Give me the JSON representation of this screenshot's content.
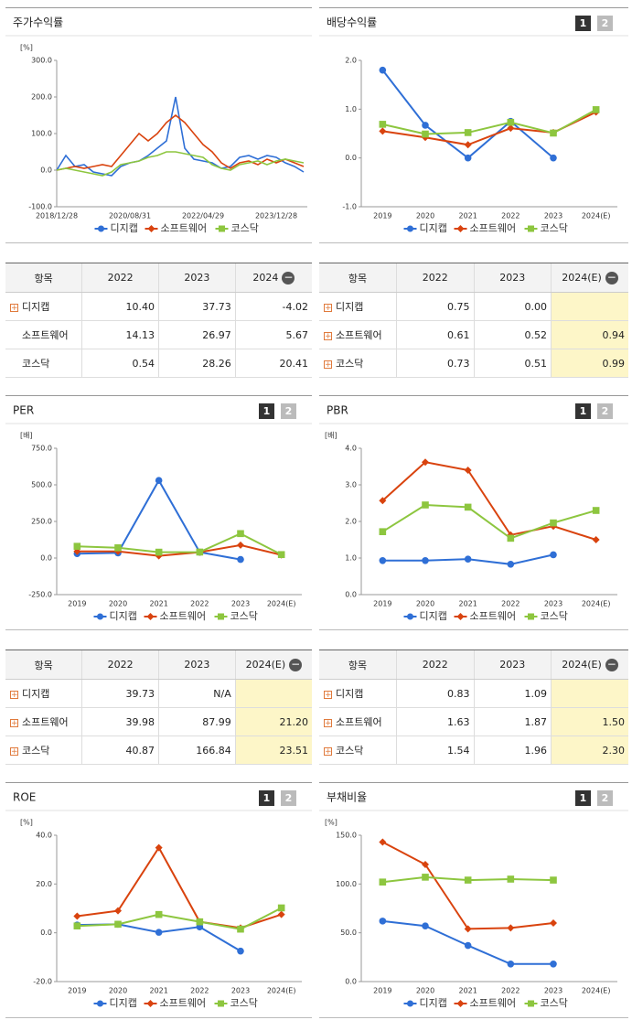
{
  "chart_data": [
    {
      "type": "line",
      "title": "주가수익률",
      "unit": "[%]",
      "markers": false,
      "categories": [
        "2018/12/28",
        null,
        null,
        null,
        null,
        null,
        null,
        null,
        "2020/08/31",
        null,
        null,
        null,
        null,
        null,
        null,
        null,
        "2022/04/29",
        null,
        null,
        null,
        null,
        null,
        null,
        null,
        "2023/12/28",
        null,
        null,
        null
      ],
      "series": [
        {
          "name": "디지캡",
          "color": "#2f6fd6",
          "values": [
            0,
            40,
            10,
            15,
            -5,
            -10,
            -15,
            10,
            20,
            25,
            40,
            60,
            80,
            200,
            60,
            30,
            25,
            20,
            5,
            10,
            35,
            40,
            30,
            40,
            35,
            20,
            10,
            -5
          ]
        },
        {
          "name": "소프트웨어",
          "color": "#d9430e",
          "values": [
            0,
            5,
            10,
            5,
            10,
            15,
            10,
            40,
            70,
            100,
            80,
            100,
            130,
            150,
            130,
            100,
            70,
            50,
            20,
            5,
            20,
            25,
            15,
            30,
            20,
            30,
            20,
            10
          ]
        },
        {
          "name": "코스닥",
          "color": "#8dc63f",
          "values": [
            0,
            5,
            0,
            -5,
            -10,
            -15,
            -5,
            15,
            20,
            25,
            35,
            40,
            50,
            50,
            45,
            40,
            35,
            15,
            5,
            0,
            15,
            20,
            25,
            15,
            25,
            30,
            25,
            20
          ]
        }
      ],
      "ylim": [
        -100,
        300
      ],
      "yticks": [
        {
          "value": 300,
          "label": "300.0"
        },
        {
          "value": 200,
          "label": "200.0"
        },
        {
          "value": 100,
          "label": "100.0"
        },
        {
          "value": 0,
          "label": "0.0"
        },
        {
          "value": -100,
          "label": "-100.0"
        }
      ],
      "grid": false,
      "legend": "bottom"
    },
    {
      "type": "line",
      "title": "배당수익률",
      "unit": null,
      "markers": true,
      "pager": [
        "1",
        "2"
      ],
      "categories": [
        "2019",
        "2020",
        "2021",
        "2022",
        "2023",
        "2024(E)"
      ],
      "series": [
        {
          "name": "디지캡",
          "color": "#2f6fd6",
          "values": [
            1.8,
            0.67,
            0.0,
            0.75,
            0.0,
            null
          ]
        },
        {
          "name": "소프트웨어",
          "color": "#d9430e",
          "values": [
            0.55,
            0.42,
            0.27,
            0.61,
            0.52,
            0.94
          ]
        },
        {
          "name": "코스닥",
          "color": "#8dc63f",
          "values": [
            0.69,
            0.49,
            0.52,
            0.73,
            0.51,
            0.99
          ]
        }
      ],
      "ylim": [
        -1,
        2
      ],
      "yticks": [
        {
          "value": 2,
          "label": "2.0"
        },
        {
          "value": 1,
          "label": "1.0"
        },
        {
          "value": 0,
          "label": "0.0"
        },
        {
          "value": -1,
          "label": "-1.0"
        }
      ],
      "grid": false,
      "legend": "bottom"
    },
    {
      "type": "line",
      "title": "PER",
      "unit": "[배]",
      "markers": true,
      "pager": [
        "1",
        "2"
      ],
      "categories": [
        "2019",
        "2020",
        "2021",
        "2022",
        "2023",
        "2024(E)"
      ],
      "series": [
        {
          "name": "디지캡",
          "color": "#2f6fd6",
          "values": [
            30,
            35,
            530,
            39.73,
            -10,
            null
          ]
        },
        {
          "name": "소프트웨어",
          "color": "#d9430e",
          "values": [
            45,
            45,
            15,
            39.98,
            87.99,
            21.2
          ]
        },
        {
          "name": "코스닥",
          "color": "#8dc63f",
          "values": [
            80,
            70,
            40,
            40.87,
            166.84,
            23.51
          ]
        }
      ],
      "ylim": [
        -250,
        750
      ],
      "yticks": [
        {
          "value": 750,
          "label": "750.0"
        },
        {
          "value": 500,
          "label": "500.0"
        },
        {
          "value": 250,
          "label": "250.0"
        },
        {
          "value": 0,
          "label": "0.0"
        },
        {
          "value": -250,
          "label": "-250.0"
        }
      ],
      "grid": false,
      "legend": "bottom"
    },
    {
      "type": "line",
      "title": "PBR",
      "unit": "[배]",
      "markers": true,
      "pager": [
        "1",
        "2"
      ],
      "categories": [
        "2019",
        "2020",
        "2021",
        "2022",
        "2023",
        "2024(E)"
      ],
      "series": [
        {
          "name": "디지캡",
          "color": "#2f6fd6",
          "values": [
            0.93,
            0.93,
            0.97,
            0.83,
            1.09,
            null
          ]
        },
        {
          "name": "소프트웨어",
          "color": "#d9430e",
          "values": [
            2.57,
            3.62,
            3.4,
            1.63,
            1.87,
            1.5
          ]
        },
        {
          "name": "코스닥",
          "color": "#8dc63f",
          "values": [
            1.72,
            2.45,
            2.39,
            1.54,
            1.96,
            2.3
          ]
        }
      ],
      "ylim": [
        0,
        4
      ],
      "yticks": [
        {
          "value": 4,
          "label": "4.0"
        },
        {
          "value": 3,
          "label": "3.0"
        },
        {
          "value": 2,
          "label": "2.0"
        },
        {
          "value": 1,
          "label": "1.0"
        },
        {
          "value": 0,
          "label": "0.0"
        }
      ],
      "grid": false,
      "legend": "bottom"
    },
    {
      "type": "line",
      "title": "ROE",
      "unit": "[%]",
      "markers": true,
      "pager": [
        "1",
        "2"
      ],
      "categories": [
        "2019",
        "2020",
        "2021",
        "2022",
        "2023",
        "2024(E)"
      ],
      "series": [
        {
          "name": "디지캡",
          "color": "#2f6fd6",
          "values": [
            3.2,
            3.5,
            0.2,
            2.4,
            -7.5,
            null
          ]
        },
        {
          "name": "소프트웨어",
          "color": "#d9430e",
          "values": [
            6.8,
            9.0,
            34.9,
            4.5,
            2.0,
            7.5
          ]
        },
        {
          "name": "코스닥",
          "color": "#8dc63f",
          "values": [
            2.8,
            3.5,
            7.5,
            4.5,
            1.5,
            10.2
          ]
        }
      ],
      "ylim": [
        -20,
        40
      ],
      "yticks": [
        {
          "value": 40,
          "label": "40.0"
        },
        {
          "value": 20,
          "label": "20.0"
        },
        {
          "value": 0,
          "label": "0.0"
        },
        {
          "value": -20,
          "label": "-20.0"
        }
      ],
      "grid": false,
      "legend": "bottom"
    },
    {
      "type": "line",
      "title": "부채비율",
      "unit": "[%]",
      "markers": true,
      "pager": [
        "1",
        "2"
      ],
      "categories": [
        "2019",
        "2020",
        "2021",
        "2022",
        "2023",
        "2024(E)"
      ],
      "series": [
        {
          "name": "디지캡",
          "color": "#2f6fd6",
          "values": [
            62,
            57,
            37,
            18,
            18,
            null
          ]
        },
        {
          "name": "소프트웨어",
          "color": "#d9430e",
          "values": [
            143,
            120,
            54,
            55,
            60,
            null
          ]
        },
        {
          "name": "코스닥",
          "color": "#8dc63f",
          "values": [
            102,
            107,
            104,
            105,
            104,
            null
          ]
        }
      ],
      "ylim": [
        0,
        150
      ],
      "yticks": [
        {
          "value": 150,
          "label": "150.0"
        },
        {
          "value": 100,
          "label": "100.0"
        },
        {
          "value": 50,
          "label": "50.0"
        },
        {
          "value": 0,
          "label": "0.0"
        }
      ],
      "grid": false,
      "legend": "bottom"
    }
  ],
  "tables": [
    {
      "columns": [
        "항목",
        "2022",
        "2023",
        "2024"
      ],
      "highlight_column": null,
      "rows": [
        {
          "name": "디지캡",
          "expandable": true,
          "values": [
            "10.40",
            "37.73",
            "-4.02"
          ]
        },
        {
          "name": "소프트웨어",
          "expandable": false,
          "values": [
            "14.13",
            "26.97",
            "5.67"
          ]
        },
        {
          "name": "코스닥",
          "expandable": false,
          "values": [
            "0.54",
            "28.26",
            "20.41"
          ]
        }
      ]
    },
    {
      "columns": [
        "항목",
        "2022",
        "2023",
        "2024(E)"
      ],
      "highlight_column": 3,
      "rows": [
        {
          "name": "디지캡",
          "expandable": true,
          "values": [
            "0.75",
            "0.00",
            null
          ]
        },
        {
          "name": "소프트웨어",
          "expandable": true,
          "values": [
            "0.61",
            "0.52",
            "0.94"
          ]
        },
        {
          "name": "코스닥",
          "expandable": true,
          "values": [
            "0.73",
            "0.51",
            "0.99"
          ]
        }
      ]
    },
    {
      "columns": [
        "항목",
        "2022",
        "2023",
        "2024(E)"
      ],
      "highlight_column": 3,
      "rows": [
        {
          "name": "디지캡",
          "expandable": true,
          "values": [
            "39.73",
            "N/A",
            null
          ]
        },
        {
          "name": "소프트웨어",
          "expandable": true,
          "values": [
            "39.98",
            "87.99",
            "21.20"
          ]
        },
        {
          "name": "코스닥",
          "expandable": true,
          "values": [
            "40.87",
            "166.84",
            "23.51"
          ]
        }
      ]
    },
    {
      "columns": [
        "항목",
        "2022",
        "2023",
        "2024(E)"
      ],
      "highlight_column": 3,
      "rows": [
        {
          "name": "디지캡",
          "expandable": true,
          "values": [
            "0.83",
            "1.09",
            null
          ]
        },
        {
          "name": "소프트웨어",
          "expandable": true,
          "values": [
            "1.63",
            "1.87",
            "1.50"
          ]
        },
        {
          "name": "코스닥",
          "expandable": true,
          "values": [
            "1.54",
            "1.96",
            "2.30"
          ]
        }
      ]
    }
  ]
}
